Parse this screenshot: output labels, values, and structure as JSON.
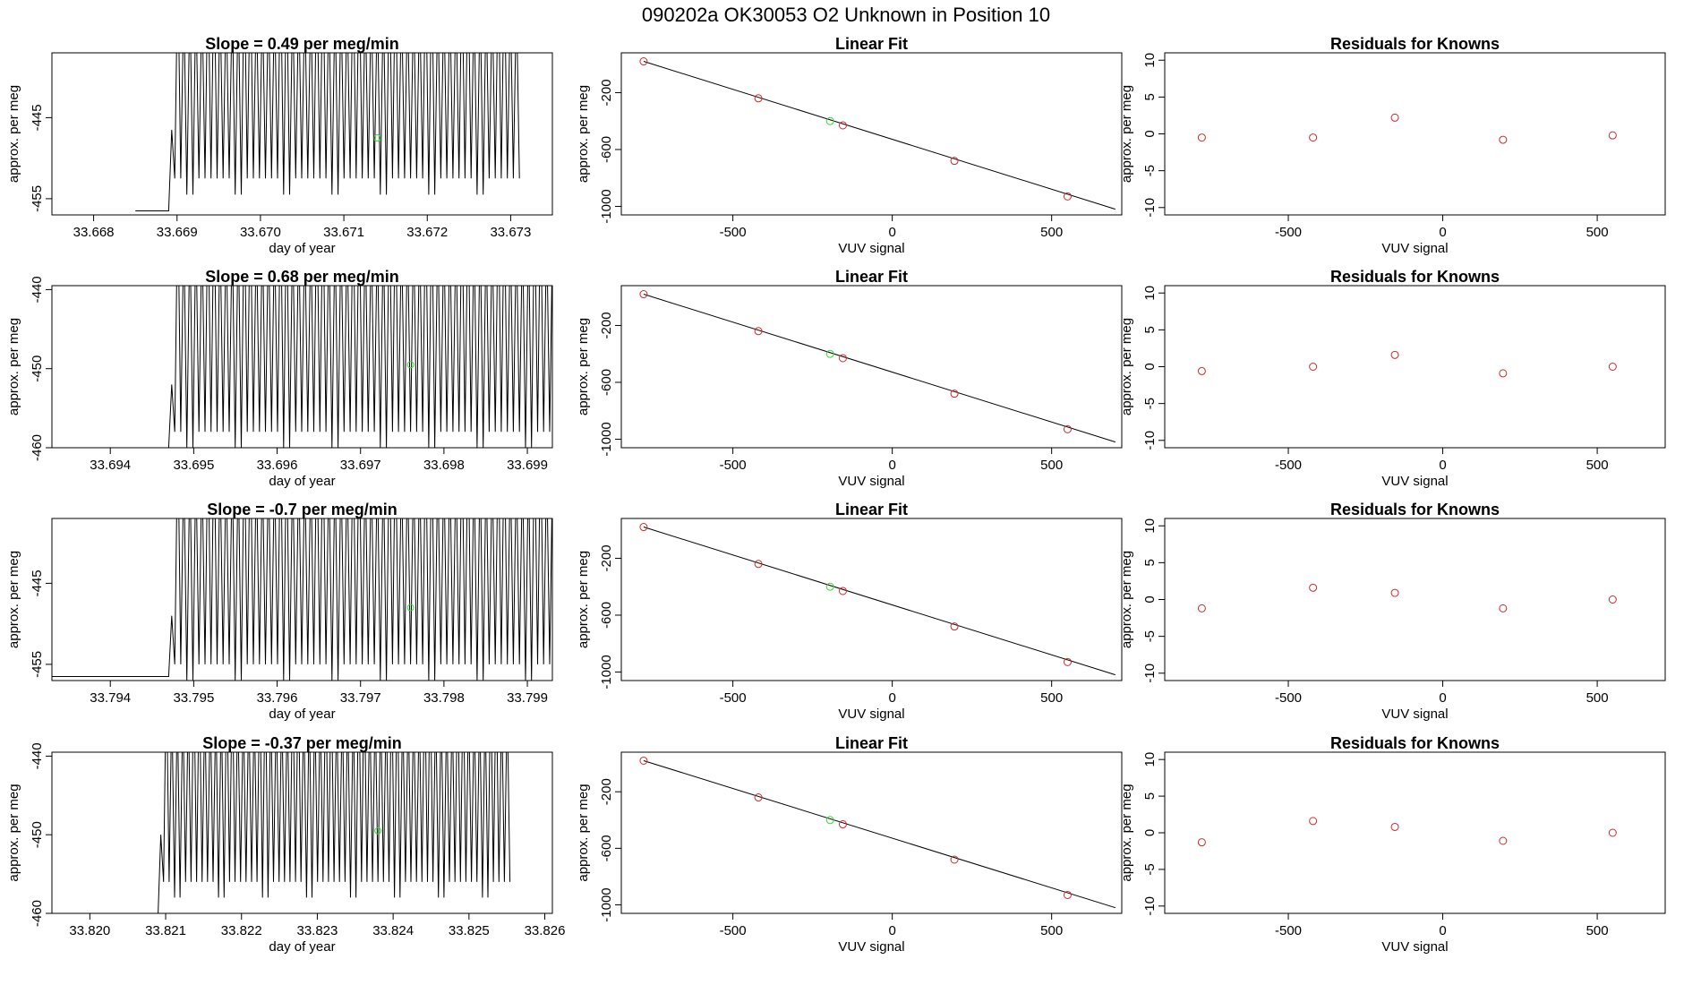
{
  "page_title": "090202a      OK30053    O2 Unknown in Position  10",
  "colors": {
    "known": "#cc2a2a",
    "unknown": "#33dd33",
    "line": "#000000"
  },
  "chart_data": [
    {
      "type": "line",
      "title": "Slope =  0.49  per meg/min",
      "xlabel": "day of year",
      "ylabel": "approx. per meg",
      "xlim": [
        33.6675,
        33.6735
      ],
      "ylim": [
        -457,
        -437
      ],
      "xticks": [
        "33.668",
        "33.669",
        "33.670",
        "33.671",
        "33.672",
        "33.673"
      ],
      "yticks": [
        "-445",
        "-455"
      ],
      "signal": {
        "start": 33.6685,
        "end": 33.6731,
        "base": -456.5,
        "onset": 33.6689,
        "period": 0.000145,
        "amp_low": -452.5,
        "amp_high": -430
      },
      "marker": {
        "x": 33.6714,
        "y": -447.5
      }
    },
    {
      "type": "scatter",
      "title": "Linear Fit",
      "xlabel": "VUV signal",
      "ylabel": "approx. per meg",
      "xlim": [
        -850,
        720
      ],
      "ylim": [
        -1060,
        80
      ],
      "xticks": [
        "-500",
        "0",
        "500"
      ],
      "yticks": [
        "-200",
        "-600",
        "-1000"
      ],
      "fit": {
        "x1": -780,
        "y1": 20,
        "x2": 700,
        "y2": -1020
      },
      "knowns": [
        {
          "x": -780,
          "y": 20
        },
        {
          "x": -420,
          "y": -240
        },
        {
          "x": -155,
          "y": -430
        },
        {
          "x": 195,
          "y": -680
        },
        {
          "x": 550,
          "y": -930
        }
      ],
      "unknown": {
        "x": -195,
        "y": -400
      }
    },
    {
      "type": "scatter",
      "title": "Residuals for Knowns",
      "xlabel": "VUV signal",
      "ylabel": "approx. per meg",
      "xlim": [
        -900,
        720
      ],
      "ylim": [
        -11,
        11
      ],
      "xticks": [
        "-500",
        "0",
        "500"
      ],
      "yticks": [
        "10",
        "5",
        "0",
        "-5",
        "-10"
      ],
      "points": [
        {
          "x": -780,
          "y": -0.5
        },
        {
          "x": -420,
          "y": -0.5
        },
        {
          "x": -155,
          "y": 2.2
        },
        {
          "x": 195,
          "y": -0.8
        },
        {
          "x": 550,
          "y": -0.2
        }
      ]
    },
    {
      "type": "line",
      "title": "Slope =  0.68  per meg/min",
      "xlabel": "day of year",
      "ylabel": "approx. per meg",
      "xlim": [
        33.6933,
        33.6993
      ],
      "ylim": [
        -460,
        -439.5
      ],
      "xticks": [
        "33.694",
        "33.695",
        "33.696",
        "33.697",
        "33.698",
        "33.699"
      ],
      "yticks": [
        "-440",
        "-450",
        "-460"
      ],
      "signal": {
        "start": 33.6933,
        "end": 33.6993,
        "base": -460,
        "onset": 33.6947,
        "period": 0.000145,
        "amp_low": -458,
        "amp_high": -432
      },
      "marker": {
        "x": 33.6976,
        "y": -449.5
      }
    },
    {
      "type": "scatter",
      "title": "Linear Fit",
      "xlabel": "VUV signal",
      "ylabel": "approx. per meg",
      "xlim": [
        -850,
        720
      ],
      "ylim": [
        -1060,
        80
      ],
      "xticks": [
        "-500",
        "0",
        "500"
      ],
      "yticks": [
        "-200",
        "-600",
        "-1000"
      ],
      "fit": {
        "x1": -780,
        "y1": 20,
        "x2": 700,
        "y2": -1020
      },
      "knowns": [
        {
          "x": -780,
          "y": 20
        },
        {
          "x": -420,
          "y": -240
        },
        {
          "x": -155,
          "y": -430
        },
        {
          "x": 195,
          "y": -680
        },
        {
          "x": 550,
          "y": -930
        }
      ],
      "unknown": {
        "x": -195,
        "y": -400
      }
    },
    {
      "type": "scatter",
      "title": "Residuals for Knowns",
      "xlabel": "VUV signal",
      "ylabel": "approx. per meg",
      "xlim": [
        -900,
        720
      ],
      "ylim": [
        -11,
        11
      ],
      "xticks": [
        "-500",
        "0",
        "500"
      ],
      "yticks": [
        "10",
        "5",
        "0",
        "-5",
        "-10"
      ],
      "points": [
        {
          "x": -780,
          "y": -0.6
        },
        {
          "x": -420,
          "y": 0
        },
        {
          "x": -155,
          "y": 1.6
        },
        {
          "x": 195,
          "y": -0.9
        },
        {
          "x": 550,
          "y": 0
        }
      ]
    },
    {
      "type": "line",
      "title": "Slope =  -0.7  per meg/min",
      "xlabel": "day of year",
      "ylabel": "approx. per meg",
      "xlim": [
        33.7933,
        33.7993
      ],
      "ylim": [
        -457,
        -437
      ],
      "xticks": [
        "33.794",
        "33.795",
        "33.796",
        "33.797",
        "33.798",
        "33.799"
      ],
      "yticks": [
        "-445",
        "-455"
      ],
      "signal": {
        "start": 33.7933,
        "end": 33.7993,
        "base": -456.5,
        "onset": 33.7947,
        "period": 0.000145,
        "amp_low": -455,
        "amp_high": -430
      },
      "marker": {
        "x": 33.7976,
        "y": -448
      }
    },
    {
      "type": "scatter",
      "title": "Linear Fit",
      "xlabel": "VUV signal",
      "ylabel": "approx. per meg",
      "xlim": [
        -850,
        720
      ],
      "ylim": [
        -1060,
        80
      ],
      "xticks": [
        "-500",
        "0",
        "500"
      ],
      "yticks": [
        "-200",
        "-600",
        "-1000"
      ],
      "fit": {
        "x1": -780,
        "y1": 20,
        "x2": 700,
        "y2": -1020
      },
      "knowns": [
        {
          "x": -780,
          "y": 20
        },
        {
          "x": -420,
          "y": -240
        },
        {
          "x": -155,
          "y": -430
        },
        {
          "x": 195,
          "y": -680
        },
        {
          "x": 550,
          "y": -930
        }
      ],
      "unknown": {
        "x": -195,
        "y": -400
      }
    },
    {
      "type": "scatter",
      "title": "Residuals for Knowns",
      "xlabel": "VUV signal",
      "ylabel": "approx. per meg",
      "xlim": [
        -900,
        720
      ],
      "ylim": [
        -11,
        11
      ],
      "xticks": [
        "-500",
        "0",
        "500"
      ],
      "yticks": [
        "10",
        "5",
        "0",
        "-5",
        "-10"
      ],
      "points": [
        {
          "x": -780,
          "y": -1.2
        },
        {
          "x": -420,
          "y": 1.6
        },
        {
          "x": -155,
          "y": 0.9
        },
        {
          "x": 195,
          "y": -1.2
        },
        {
          "x": 550,
          "y": 0
        }
      ]
    },
    {
      "type": "line",
      "title": "Slope =  -0.37  per meg/min",
      "xlabel": "day of year",
      "ylabel": "approx. per meg",
      "xlim": [
        33.8195,
        33.8261
      ],
      "ylim": [
        -460,
        -439.5
      ],
      "xticks": [
        "33.820",
        "33.821",
        "33.822",
        "33.823",
        "33.824",
        "33.825",
        "33.826"
      ],
      "yticks": [
        "-440",
        "-450",
        "-460"
      ],
      "signal": {
        "start": 33.8195,
        "end": 33.8255,
        "base": -460,
        "onset": 33.8209,
        "period": 0.000145,
        "amp_low": -456,
        "amp_high": -433
      },
      "marker": {
        "x": 33.8238,
        "y": -449.5
      }
    },
    {
      "type": "scatter",
      "title": "Linear Fit",
      "xlabel": "VUV signal",
      "ylabel": "approx. per meg",
      "xlim": [
        -850,
        720
      ],
      "ylim": [
        -1060,
        80
      ],
      "xticks": [
        "-500",
        "0",
        "500"
      ],
      "yticks": [
        "-200",
        "-600",
        "-1000"
      ],
      "fit": {
        "x1": -780,
        "y1": 20,
        "x2": 700,
        "y2": -1020
      },
      "knowns": [
        {
          "x": -780,
          "y": 20
        },
        {
          "x": -420,
          "y": -240
        },
        {
          "x": -155,
          "y": -430
        },
        {
          "x": 195,
          "y": -680
        },
        {
          "x": 550,
          "y": -930
        }
      ],
      "unknown": {
        "x": -195,
        "y": -400
      }
    },
    {
      "type": "scatter",
      "title": "Residuals for Knowns",
      "xlabel": "VUV signal",
      "ylabel": "approx. per meg",
      "xlim": [
        -900,
        720
      ],
      "ylim": [
        -11,
        11
      ],
      "xticks": [
        "-500",
        "0",
        "500"
      ],
      "yticks": [
        "10",
        "5",
        "0",
        "-5",
        "-10"
      ],
      "points": [
        {
          "x": -780,
          "y": -1.3
        },
        {
          "x": -420,
          "y": 1.6
        },
        {
          "x": -155,
          "y": 0.8
        },
        {
          "x": 195,
          "y": -1.1
        },
        {
          "x": 550,
          "y": 0
        }
      ]
    }
  ]
}
